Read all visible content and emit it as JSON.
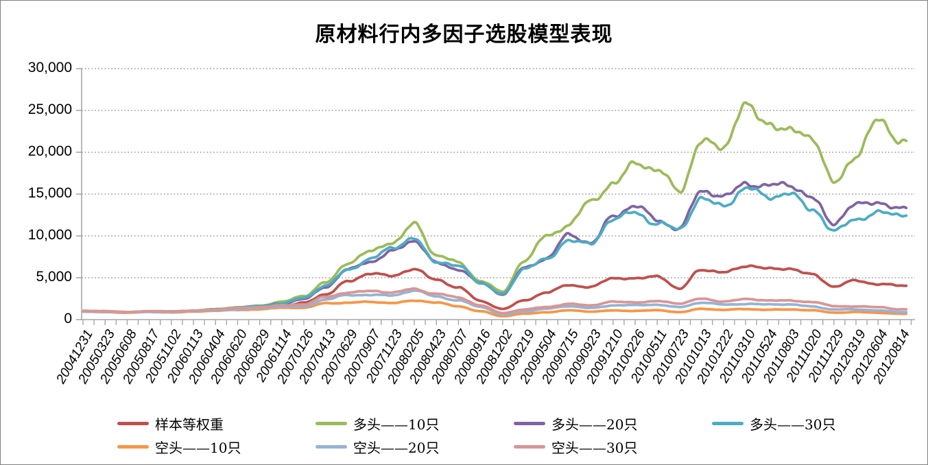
{
  "chart_data": {
    "type": "line",
    "title": "原材料行内多因子选股模型表现",
    "ylim": [
      0,
      30000
    ],
    "y_tick_step": 5000,
    "y_ticks": [
      "0",
      "5,000",
      "10,000",
      "15,000",
      "20,000",
      "25,000",
      "30,000"
    ],
    "grid": "horizontal-dotted",
    "legend_position": "bottom",
    "x_labels": [
      "20041231",
      "20050323",
      "20050608",
      "20050817",
      "20051102",
      "20060113",
      "20060404",
      "20060620",
      "20060829",
      "20061114",
      "20070126",
      "20070413",
      "20070629",
      "20070907",
      "20071123",
      "20080205",
      "20080423",
      "20080707",
      "20080916",
      "20081202",
      "20090219",
      "20090504",
      "20090715",
      "20090923",
      "20091210",
      "20100226",
      "20100511",
      "20100723",
      "20101013",
      "20101222",
      "20110310",
      "20110524",
      "20110803",
      "20111020",
      "20111229",
      "20120319",
      "20120604",
      "20120814"
    ],
    "series": [
      {
        "key": "sample-equal-weight",
        "name": "样本等权重",
        "color": "#C0504D",
        "values": [
          1000,
          980,
          900,
          980,
          950,
          1020,
          1150,
          1300,
          1400,
          1600,
          2000,
          3000,
          4600,
          5600,
          5100,
          6100,
          4800,
          3800,
          2200,
          1300,
          2300,
          3200,
          4200,
          3900,
          4900,
          4900,
          5300,
          3600,
          6000,
          5700,
          6400,
          6000,
          6200,
          5400,
          3900,
          4700,
          4300,
          4000
        ]
      },
      {
        "key": "long-10",
        "name": "多头——10只",
        "color": "#9BBB59",
        "values": [
          1000,
          950,
          880,
          950,
          920,
          1050,
          1250,
          1450,
          1700,
          2100,
          2800,
          4500,
          6800,
          8000,
          9300,
          11500,
          7600,
          6800,
          4700,
          3300,
          7000,
          10200,
          11300,
          14000,
          16300,
          19000,
          17500,
          15500,
          21500,
          20500,
          25300,
          24000,
          22400,
          21600,
          16500,
          19800,
          23400,
          21500
        ]
      },
      {
        "key": "long-20",
        "name": "多头——20只",
        "color": "#8064A2",
        "values": [
          1000,
          960,
          890,
          960,
          930,
          1040,
          1200,
          1380,
          1550,
          1900,
          2500,
          3900,
          5900,
          7000,
          8200,
          9300,
          6800,
          6100,
          4300,
          3000,
          6300,
          7300,
          10000,
          9300,
          12400,
          13400,
          12000,
          11000,
          15200,
          14600,
          16600,
          15800,
          16000,
          14700,
          11600,
          13500,
          14200,
          13300
        ]
      },
      {
        "key": "long-30",
        "name": "多头——30只",
        "color": "#4BACC6",
        "values": [
          1000,
          970,
          900,
          970,
          940,
          1060,
          1220,
          1400,
          1600,
          1950,
          2600,
          4000,
          6100,
          7200,
          8500,
          9700,
          7000,
          6300,
          4400,
          3100,
          6100,
          7100,
          9700,
          9000,
          11900,
          12900,
          11600,
          10600,
          14500,
          13800,
          15500,
          14600,
          15300,
          13200,
          10400,
          12200,
          12800,
          12400
        ]
      },
      {
        "key": "short-10",
        "name": "空头——10只",
        "color": "#F79646",
        "values": [
          950,
          900,
          830,
          900,
          870,
          950,
          1050,
          1150,
          1250,
          1400,
          1400,
          2000,
          2000,
          2100,
          2000,
          2300,
          2000,
          1600,
          1000,
          400,
          700,
          900,
          1100,
          950,
          1100,
          1050,
          1100,
          900,
          1300,
          1150,
          1250,
          1200,
          1200,
          1100,
          850,
          900,
          800,
          700
        ]
      },
      {
        "key": "short-20",
        "name": "空头——20只",
        "color": "#95B3D7",
        "values": [
          970,
          930,
          860,
          930,
          900,
          980,
          1100,
          1250,
          1350,
          1550,
          1600,
          2400,
          2900,
          3000,
          2900,
          3400,
          2800,
          2300,
          1500,
          600,
          1000,
          1300,
          1600,
          1400,
          1700,
          1700,
          1800,
          1500,
          2000,
          1800,
          1900,
          1800,
          1800,
          1600,
          1200,
          1200,
          1100,
          900
        ]
      },
      {
        "key": "short-30",
        "name": "空头——30只",
        "color": "#D99694",
        "values": [
          1050,
          1000,
          920,
          1000,
          970,
          1060,
          1200,
          1350,
          1500,
          1700,
          1800,
          2700,
          3300,
          3400,
          3200,
          3700,
          3100,
          2600,
          1700,
          800,
          1200,
          1500,
          1900,
          1700,
          2100,
          2100,
          2200,
          1900,
          2500,
          2200,
          2400,
          2300,
          2300,
          2100,
          1600,
          1600,
          1500,
          1200
        ]
      }
    ]
  }
}
